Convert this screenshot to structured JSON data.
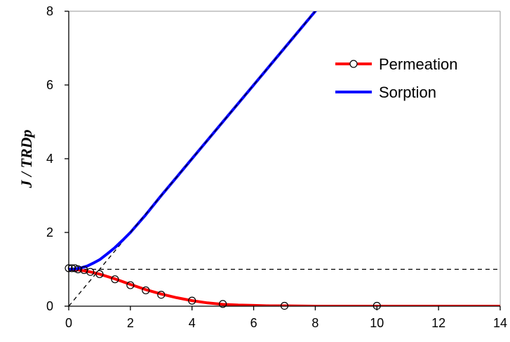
{
  "chart_data": {
    "type": "line",
    "title": "",
    "xlabel": "",
    "ylabel": "J / TRDp",
    "xlim": [
      0,
      14
    ],
    "ylim": [
      0,
      8
    ],
    "xticks": [
      0,
      2,
      4,
      6,
      8,
      10,
      12,
      14
    ],
    "yticks": [
      0,
      2,
      4,
      6,
      8
    ],
    "grid": false,
    "legend_position": "top-right",
    "series": [
      {
        "name": "Permeation",
        "color": "#ff0000",
        "marker": "open-circle",
        "line_x": [
          0,
          0.25,
          0.5,
          0.75,
          1,
          1.5,
          2,
          2.5,
          3,
          3.5,
          4,
          4.5,
          5,
          5.5,
          6,
          6.5,
          7,
          8,
          10,
          12,
          14
        ],
        "line_y": [
          1.0,
          0.99,
          0.96,
          0.92,
          0.87,
          0.74,
          0.59,
          0.45,
          0.33,
          0.23,
          0.15,
          0.09,
          0.05,
          0.03,
          0.02,
          0.01,
          0.01,
          0.0,
          0.0,
          0.0,
          0.0
        ],
        "marker_x": [
          0,
          0.1,
          0.2,
          0.3,
          0.5,
          0.7,
          1,
          1.5,
          2,
          2.5,
          3,
          4,
          5,
          7,
          10
        ],
        "marker_y": [
          1.03,
          1.03,
          1.03,
          1.0,
          0.98,
          0.93,
          0.87,
          0.73,
          0.57,
          0.43,
          0.31,
          0.15,
          0.06,
          0.01,
          0.01
        ]
      },
      {
        "name": "Sorption",
        "color": "#0000ff",
        "marker": "none",
        "line_x": [
          0,
          0.2,
          0.4,
          0.6,
          0.8,
          1,
          1.25,
          1.5,
          1.75,
          2,
          2.5,
          3,
          3.5,
          4,
          5,
          6,
          7,
          8,
          8.1
        ],
        "line_y": [
          1.0,
          1.01,
          1.04,
          1.09,
          1.17,
          1.26,
          1.42,
          1.59,
          1.79,
          2.0,
          2.48,
          3.0,
          3.5,
          4.0,
          5.0,
          6.0,
          7.0,
          8.0,
          8.1
        ]
      }
    ],
    "reference_lines": [
      {
        "style": "dashed",
        "color": "#000000",
        "x": [
          0,
          14
        ],
        "y": [
          1,
          1
        ]
      },
      {
        "style": "dashed",
        "color": "#000000",
        "x": [
          0,
          8
        ],
        "y": [
          0,
          8
        ]
      }
    ]
  }
}
